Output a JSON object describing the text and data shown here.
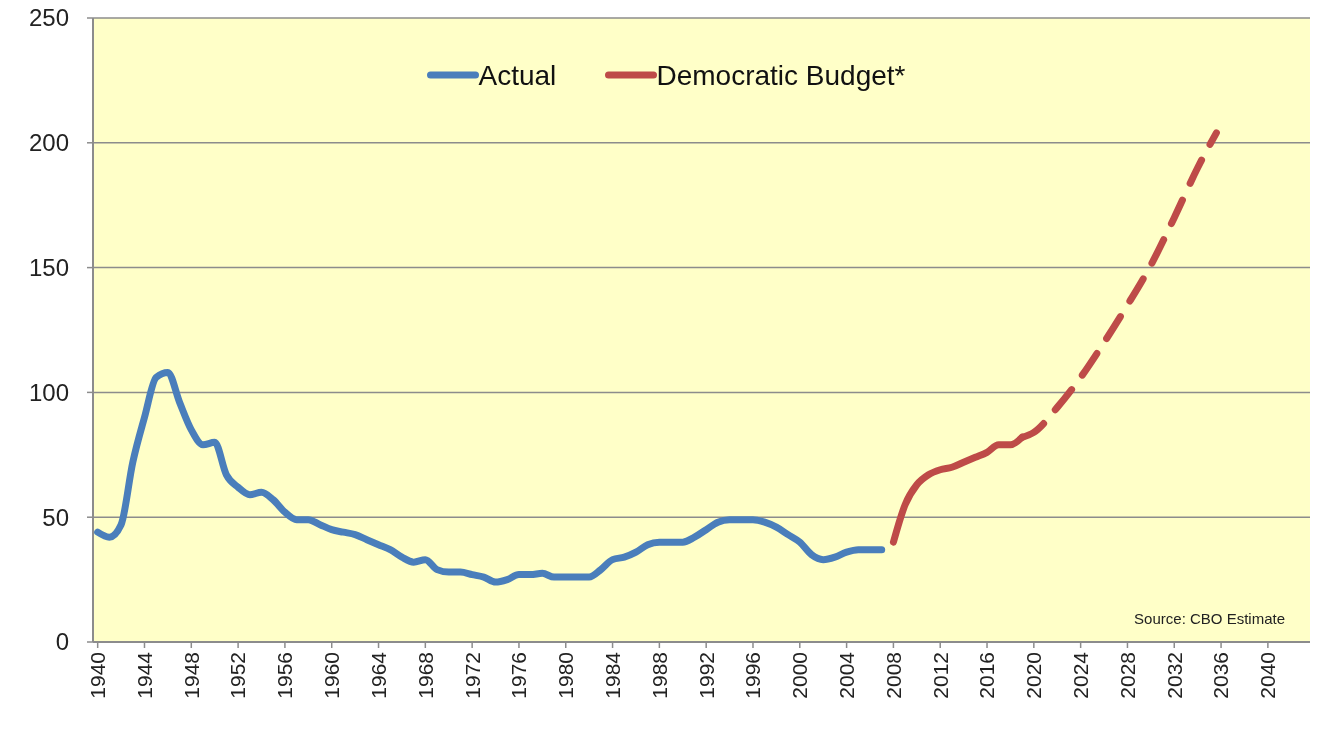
{
  "chart_data": {
    "type": "line",
    "legend": "top",
    "grid": "y",
    "line_style": "solid",
    "xlim": [
      1939.6,
      2043.6
    ],
    "ylim": [
      0,
      250
    ],
    "yticks": [
      0,
      50,
      100,
      150,
      200,
      250
    ],
    "xticks": [
      1940,
      1944,
      1948,
      1952,
      1956,
      1960,
      1964,
      1968,
      1972,
      1976,
      1980,
      1984,
      1988,
      1992,
      1996,
      2000,
      2004,
      2008,
      2012,
      2016,
      2020,
      2024,
      2028,
      2032,
      2036,
      2040
    ],
    "annotations": [
      "Source: CBO Estimate"
    ],
    "series": [
      {
        "name": "Actual",
        "color": "#4a7ebb",
        "x": [
          1940,
          1941,
          1942,
          1943,
          1944,
          1945,
          1946,
          1947,
          1948,
          1949,
          1950,
          1951,
          1952,
          1953,
          1954,
          1955,
          1956,
          1957,
          1958,
          1959,
          1960,
          1961,
          1962,
          1963,
          1964,
          1965,
          1966,
          1967,
          1968,
          1969,
          1970,
          1971,
          1972,
          1973,
          1974,
          1975,
          1976,
          1977,
          1978,
          1979,
          1980,
          1981,
          1982,
          1983,
          1984,
          1985,
          1986,
          1987,
          1988,
          1989,
          1990,
          1991,
          1992,
          1993,
          1994,
          1995,
          1996,
          1997,
          1998,
          1999,
          2000,
          2001,
          2002,
          2003,
          2004,
          2005,
          2006,
          2007
        ],
        "values": [
          44,
          42,
          47,
          72,
          90,
          106,
          108,
          96,
          85,
          79,
          80,
          67,
          62,
          59,
          60,
          57,
          52,
          49,
          49,
          47,
          45,
          44,
          43,
          41,
          39,
          37,
          34,
          32,
          33,
          29,
          28,
          28,
          27,
          26,
          24,
          25,
          27,
          27,
          27.5,
          26,
          26,
          26,
          26,
          29,
          33,
          34,
          36,
          39,
          40,
          40,
          40,
          42,
          45,
          48,
          49,
          49,
          49,
          48,
          46,
          43,
          40,
          35,
          33,
          34,
          36,
          37,
          37,
          37
        ]
      },
      {
        "name": "Democratic Budget*",
        "color": "#be4b48",
        "x": [
          2008,
          2009,
          2010,
          2011,
          2012,
          2013,
          2014,
          2015,
          2016,
          2017,
          2018,
          2019
        ],
        "values": [
          40,
          55,
          63,
          67,
          69,
          70,
          72,
          74,
          76,
          79,
          79,
          82
        ]
      },
      {
        "color": "#be4b48",
        "line_style": "dashed",
        "x": [
          2019,
          2020,
          2022,
          2024,
          2026,
          2028,
          2030,
          2032,
          2034,
          2035.6
        ],
        "values": [
          82,
          84,
          94,
          106,
          120,
          135,
          151,
          170,
          190,
          204
        ]
      }
    ]
  }
}
